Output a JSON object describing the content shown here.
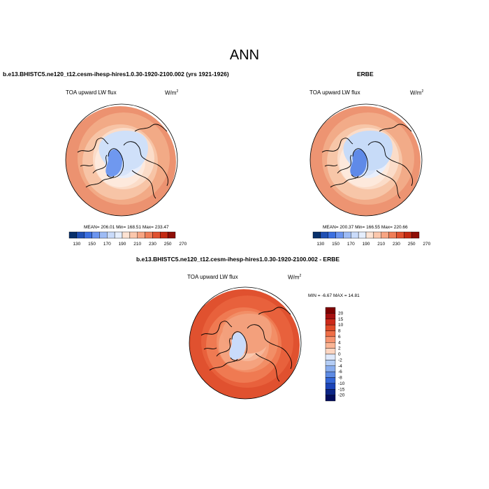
{
  "figure": {
    "title": "ANN"
  },
  "panels": {
    "model": {
      "title": "b.e13.BHISTC5.ne120_t12.cesm-ihesp-hires1.0.30-1920-2100.002 (yrs 1921-1926)",
      "variable": "TOA upward LW flux",
      "units_base": "W/m",
      "units_exp": "2",
      "stats": "MEAN= 206.01  Min= 168.51  Max= 233.47"
    },
    "obs": {
      "title": "ERBE",
      "variable": "TOA upward LW flux",
      "units_base": "W/m",
      "units_exp": "2",
      "stats": "MEAN= 200.37  Min= 166.55  Max= 220.66"
    },
    "diff": {
      "title": "b.e13.BHISTC5.ne120_t12.cesm-ihesp-hires1.0.30-1920-2100.002 - ERBE",
      "variable": "TOA upward LW flux",
      "units_base": "W/m",
      "units_exp": "2",
      "stats": "MIN =  -6.67 MAX =  14.81"
    }
  },
  "colorbars": {
    "abs": {
      "ticks": [
        "130",
        "150",
        "170",
        "190",
        "210",
        "230",
        "250",
        "270"
      ],
      "colors": [
        "#08306b",
        "#1f4fb4",
        "#3b6fe0",
        "#6b95f0",
        "#9dbbf5",
        "#c9dbfa",
        "#e5eefc",
        "#fde3d3",
        "#fbc7ac",
        "#f7a583",
        "#ef7d57",
        "#e0512f",
        "#c42a12",
        "#8f0e06"
      ]
    },
    "diff": {
      "ticks": [
        "20",
        "15",
        "10",
        "8",
        "6",
        "4",
        "2",
        "0",
        "-2",
        "-4",
        "-6",
        "-8",
        "-10",
        "-15",
        "-20"
      ],
      "colors": [
        "#7f0000",
        "#a50f0f",
        "#cc2a1a",
        "#e04a28",
        "#ef6f47",
        "#f69470",
        "#fab595",
        "#fdd6c2",
        "#dfe9fb",
        "#b4cdf5",
        "#89adee",
        "#5e8be4",
        "#3466d8",
        "#1c44b8",
        "#0c2586",
        "#030d5c"
      ]
    }
  },
  "maps": {
    "model": {
      "ring": [
        "#ec9270",
        "#f2aa86",
        "#f7c4a6",
        "#fbdcc8",
        "#fde9dc",
        "#e8eefb",
        "#d7e4fa"
      ],
      "arctic": "#cfe0f9",
      "greenland": "#6f98ef"
    },
    "obs": {
      "ring": [
        "#ed9472",
        "#f2ab88",
        "#f7c6a8",
        "#fbdcc8",
        "#fde9dc",
        "#e8eefb",
        "#d7e4fa"
      ],
      "arctic": "#c7dbf8",
      "greenland": "#5f8ae8"
    },
    "diff": {
      "ring": [
        "#e0512f",
        "#e8613c",
        "#ef7a52",
        "#f28e66",
        "#f5a27e",
        "#f7b698",
        "#f9c7ad"
      ],
      "arctic": "#f3a07c",
      "greenland": "#c9dbfa"
    }
  }
}
